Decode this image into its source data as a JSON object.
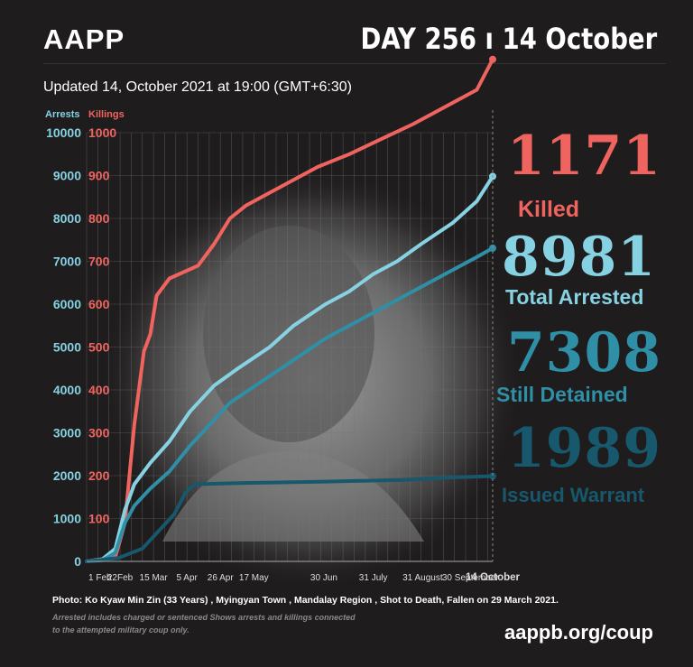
{
  "header": {
    "brand": "AAPP",
    "headline": "DAY 256 ı 14 October",
    "updated": "Updated 14, October 2021 at 19:00 (GMT+6:30)"
  },
  "colors": {
    "killed": "#f06460",
    "arrested": "#86d2e2",
    "detained": "#2f8fa6",
    "warrant": "#17586c",
    "background": "#1f1c1d"
  },
  "stats": {
    "killed_value": "1171",
    "killed_label": "Killed",
    "arrested_value": "8981",
    "arrested_label": "Total Arrested",
    "detained_value": "7308",
    "detained_label": "Still Detained",
    "warrant_value": "1989",
    "warrant_label": "Issued Warrant"
  },
  "chart_data": {
    "type": "line",
    "left_axis_label": "Arrests",
    "right_axis_label": "Killings",
    "arrests_ticks": [
      0,
      1000,
      2000,
      3000,
      4000,
      5000,
      6000,
      7000,
      8000,
      9000,
      10000
    ],
    "killings_ticks": [
      100,
      200,
      300,
      400,
      500,
      600,
      700,
      800,
      900,
      1000
    ],
    "ylim_arrests": [
      0,
      10000
    ],
    "ylim_killings": [
      0,
      1000
    ],
    "x_tick_labels": [
      "1 Feb",
      "22Feb",
      "15 Mar",
      "5 Apr",
      "26 Apr",
      "17 May",
      "30 Jun",
      "31 July",
      "31 August",
      "30 September",
      "14 October"
    ],
    "x_tick_days": [
      0,
      21,
      42,
      63,
      84,
      105,
      149,
      180,
      211,
      241,
      255
    ],
    "x_range_days": [
      0,
      255
    ],
    "series": [
      {
        "name": "Killed",
        "axis": "killings",
        "points": [
          [
            0,
            0
          ],
          [
            18,
            10
          ],
          [
            24,
            90
          ],
          [
            30,
            320
          ],
          [
            36,
            490
          ],
          [
            40,
            530
          ],
          [
            44,
            620
          ],
          [
            52,
            660
          ],
          [
            70,
            690
          ],
          [
            80,
            740
          ],
          [
            90,
            800
          ],
          [
            100,
            830
          ],
          [
            110,
            850
          ],
          [
            125,
            880
          ],
          [
            145,
            920
          ],
          [
            165,
            950
          ],
          [
            185,
            985
          ],
          [
            205,
            1020
          ],
          [
            225,
            1060
          ],
          [
            245,
            1100
          ],
          [
            255,
            1171
          ]
        ]
      },
      {
        "name": "Total Arrested",
        "axis": "arrests",
        "points": [
          [
            0,
            0
          ],
          [
            10,
            50
          ],
          [
            18,
            300
          ],
          [
            24,
            1200
          ],
          [
            30,
            1800
          ],
          [
            40,
            2300
          ],
          [
            52,
            2800
          ],
          [
            65,
            3500
          ],
          [
            80,
            4100
          ],
          [
            95,
            4500
          ],
          [
            115,
            5000
          ],
          [
            130,
            5500
          ],
          [
            150,
            6000
          ],
          [
            165,
            6300
          ],
          [
            180,
            6700
          ],
          [
            195,
            7000
          ],
          [
            210,
            7400
          ],
          [
            230,
            7900
          ],
          [
            245,
            8400
          ],
          [
            255,
            8981
          ]
        ]
      },
      {
        "name": "Still Detained",
        "axis": "arrests",
        "points": [
          [
            0,
            0
          ],
          [
            10,
            30
          ],
          [
            18,
            200
          ],
          [
            24,
            900
          ],
          [
            30,
            1300
          ],
          [
            40,
            1700
          ],
          [
            52,
            2100
          ],
          [
            65,
            2700
          ],
          [
            75,
            3100
          ],
          [
            90,
            3700
          ],
          [
            110,
            4200
          ],
          [
            130,
            4700
          ],
          [
            150,
            5200
          ],
          [
            170,
            5600
          ],
          [
            190,
            6000
          ],
          [
            210,
            6400
          ],
          [
            230,
            6800
          ],
          [
            245,
            7100
          ],
          [
            255,
            7308
          ]
        ]
      },
      {
        "name": "Issued Warrant",
        "axis": "arrests",
        "points": [
          [
            0,
            0
          ],
          [
            20,
            80
          ],
          [
            35,
            300
          ],
          [
            45,
            700
          ],
          [
            55,
            1100
          ],
          [
            62,
            1600
          ],
          [
            68,
            1800
          ],
          [
            100,
            1830
          ],
          [
            150,
            1860
          ],
          [
            200,
            1900
          ],
          [
            230,
            1960
          ],
          [
            255,
            1989
          ]
        ]
      }
    ]
  },
  "footer": {
    "photo_note": "Photo:  Ko Kyaw Min Zin  (33 Years)  , Myingyan Town ,  Mandalay Region , Shot to Death, Fallen on 29 March 2021.",
    "note_line1": "Arrested includes charged or sentenced Shows arrests and killings connected",
    "note_line2": "to the attempted military coup only.",
    "site": "aappb.org/coup"
  }
}
